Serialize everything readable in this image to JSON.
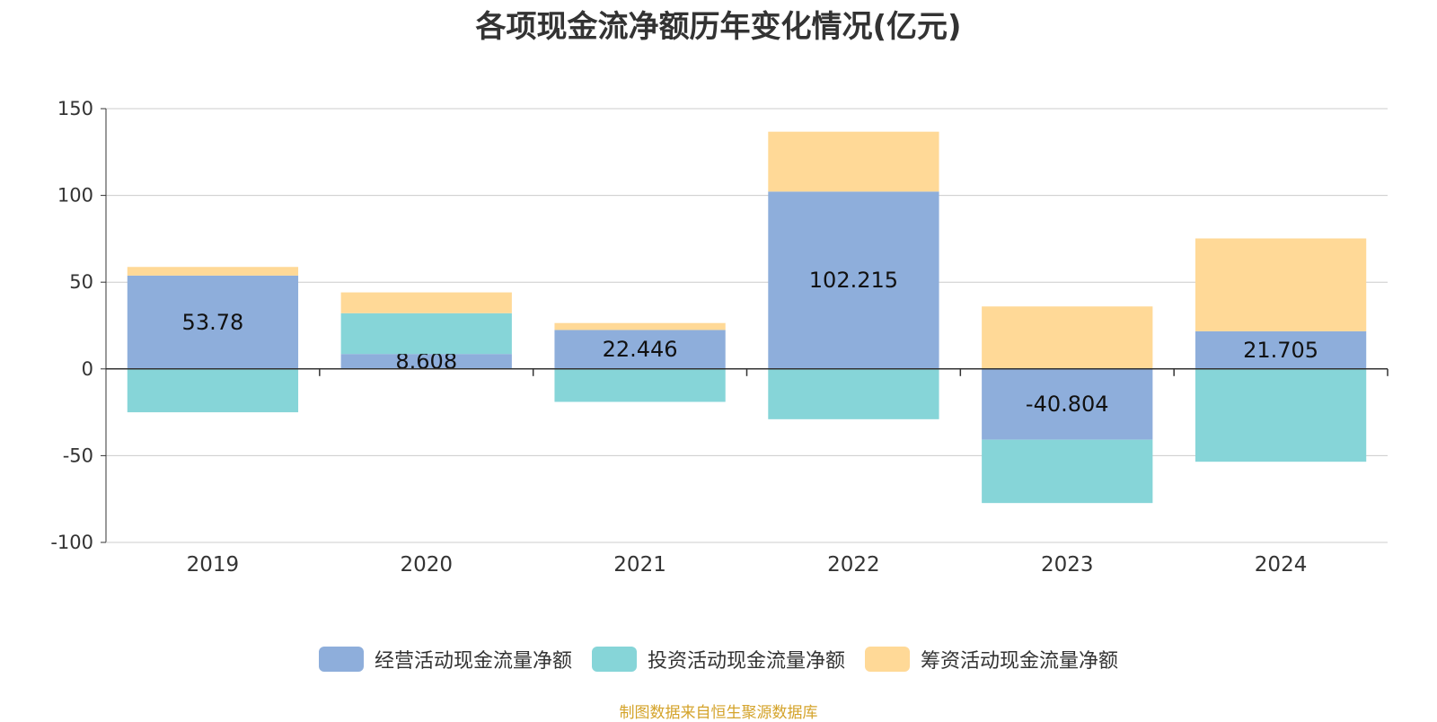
{
  "chart_data": {
    "type": "bar",
    "stacked": true,
    "title": "各项现金流净额历年变化情况(亿元)",
    "categories": [
      "2019",
      "2020",
      "2021",
      "2022",
      "2023",
      "2024"
    ],
    "ylim": [
      -100,
      150
    ],
    "yticks": [
      150,
      100,
      50,
      0,
      -50,
      -100
    ],
    "grid": true,
    "legend_position": "bottom",
    "series": [
      {
        "name": "经营活动现金流量净额",
        "color": "#8eaedb",
        "values": [
          53.78,
          8.608,
          22.446,
          102.215,
          -40.804,
          21.705
        ],
        "labels": [
          "53.78",
          "8.608",
          "22.446",
          "102.215",
          "-40.804",
          "21.705"
        ]
      },
      {
        "name": "投资活动现金流量净额",
        "color": "#86d5d8",
        "values": [
          -25,
          23.5,
          -19,
          -29,
          -36.5,
          -53.5
        ]
      },
      {
        "name": "筹资活动现金流量净额",
        "color": "#ffd997",
        "values": [
          5,
          12,
          4,
          34.5,
          36,
          53.5
        ]
      }
    ],
    "source": "制图数据来自恒生聚源数据库"
  }
}
